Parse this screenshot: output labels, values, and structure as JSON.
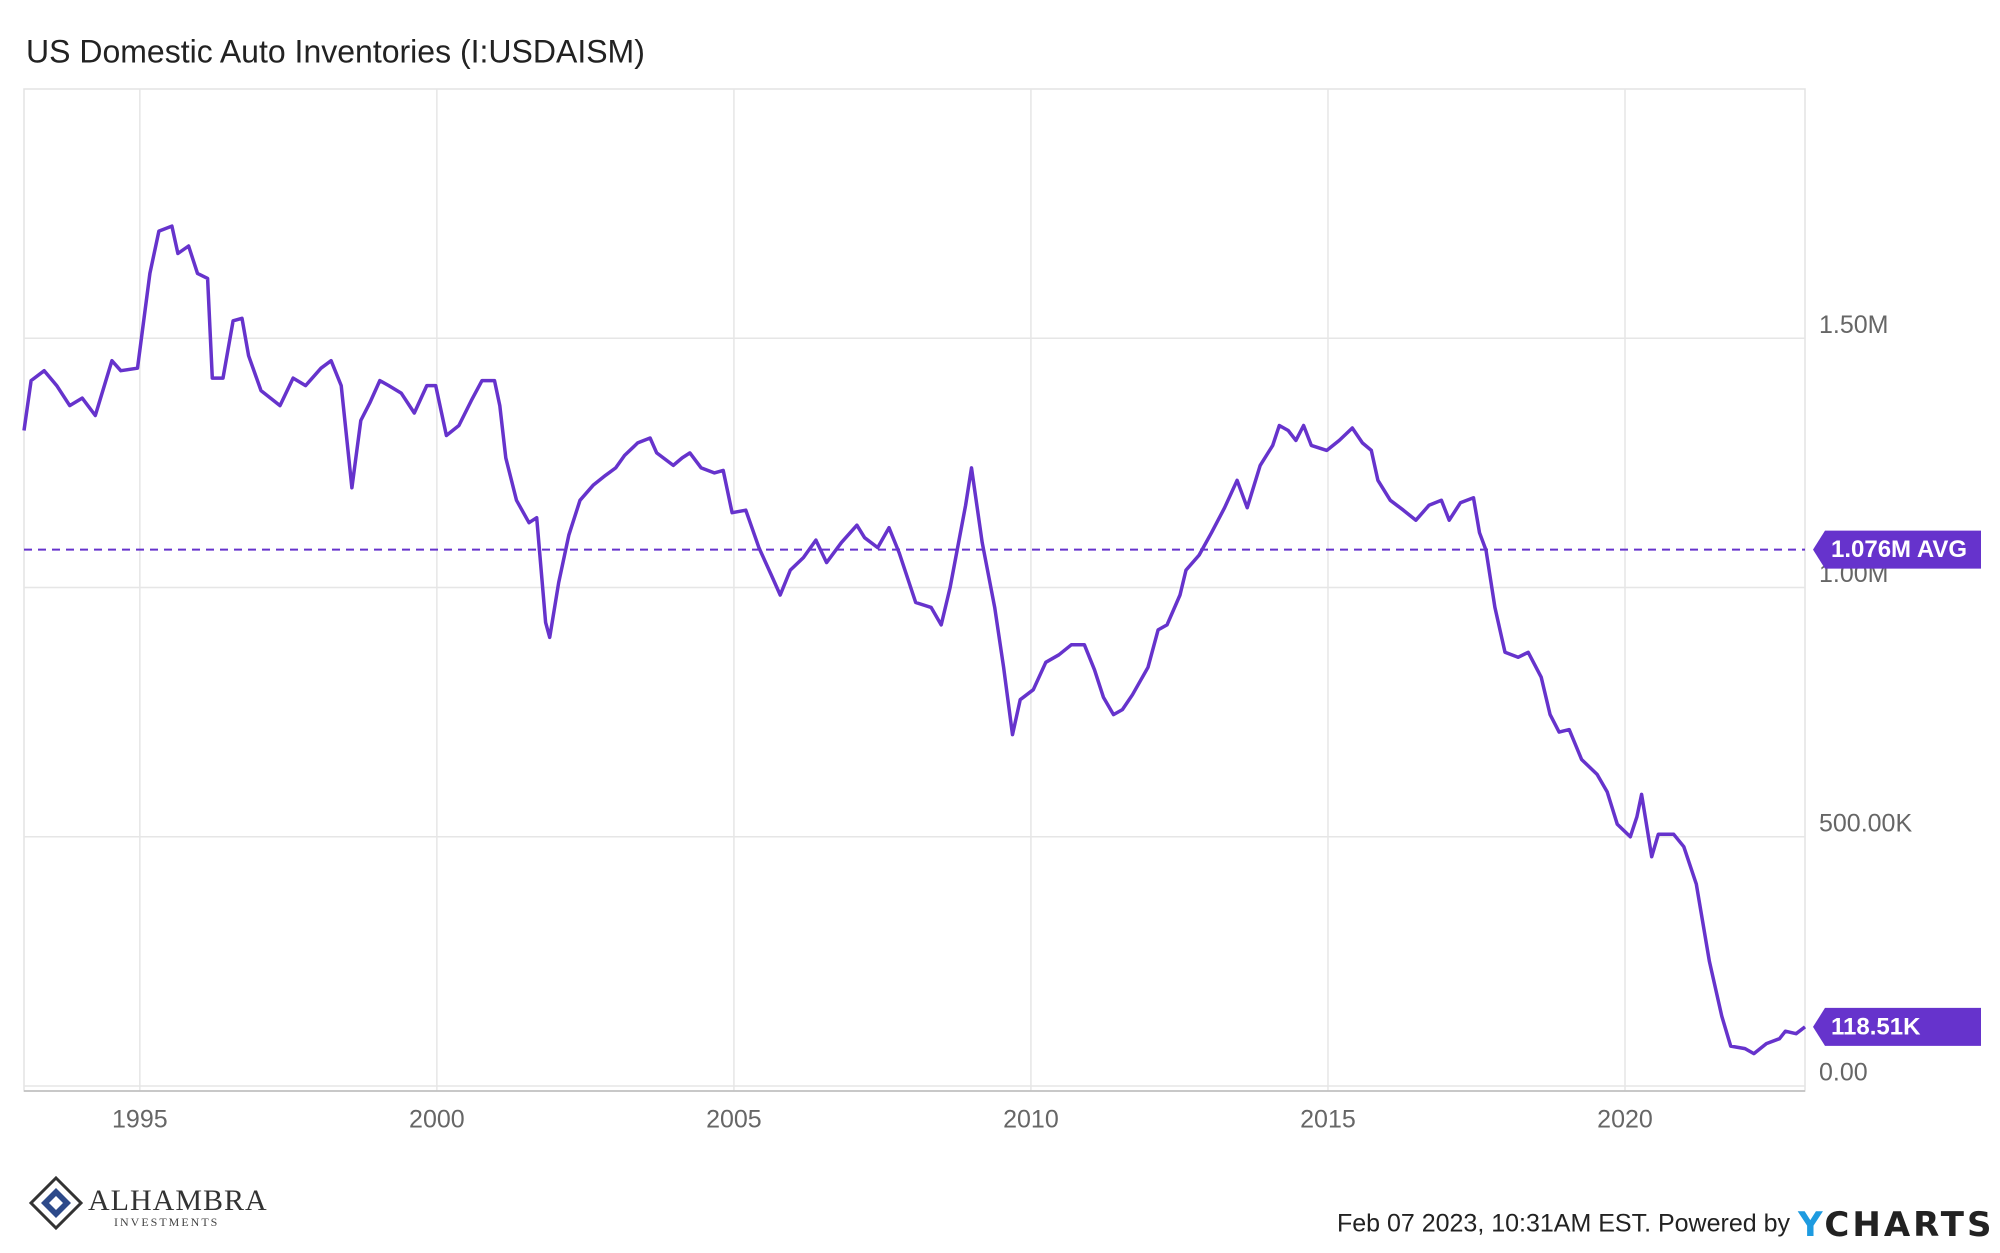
{
  "chart_data": {
    "type": "line",
    "title": "US Domestic Auto Inventories (I:USDAISM)",
    "color": "#6633cc",
    "grid": true,
    "xlim": [
      1993.05,
      2023.03
    ],
    "xticks": [
      1995,
      2000,
      2005,
      2010,
      2015,
      2020
    ],
    "ylim": [
      -10000,
      2000000
    ],
    "yticks": [
      {
        "value": 0,
        "label": "0.00"
      },
      {
        "value": 500000,
        "label": "500.00K"
      },
      {
        "value": 1000000,
        "label": "1.00M"
      },
      {
        "value": 1500000,
        "label": "1.50M"
      }
    ],
    "average": {
      "value": 1076000,
      "label": "1.076M AVG"
    },
    "last_value_label": "118.51K",
    "x": [
      1993.05,
      1993.17,
      1993.39,
      1993.6,
      1993.82,
      1994.03,
      1994.25,
      1994.53,
      1994.68,
      1994.96,
      1995.17,
      1995.32,
      1995.54,
      1995.64,
      1995.82,
      1995.97,
      1996.14,
      1996.22,
      1996.4,
      1996.57,
      1996.72,
      1996.83,
      1997.04,
      1997.36,
      1997.58,
      1997.79,
      1998.05,
      1998.22,
      1998.39,
      1998.57,
      1998.72,
      1998.87,
      1999.04,
      1999.19,
      1999.4,
      1999.62,
      1999.83,
      1999.98,
      2000.16,
      2000.37,
      2000.58,
      2000.76,
      2000.97,
      2001.06,
      2001.16,
      2001.34,
      2001.55,
      2001.68,
      2001.83,
      2001.9,
      2002.05,
      2002.22,
      2002.41,
      2002.63,
      2002.84,
      2003.01,
      2003.16,
      2003.38,
      2003.59,
      2003.7,
      2003.98,
      2004.13,
      2004.26,
      2004.45,
      2004.67,
      2004.82,
      2004.97,
      2005.2,
      2005.42,
      2005.63,
      2005.78,
      2005.95,
      2006.17,
      2006.38,
      2006.56,
      2006.81,
      2007.07,
      2007.2,
      2007.42,
      2007.61,
      2007.78,
      2008.06,
      2008.32,
      2008.49,
      2008.64,
      2008.9,
      2009.0,
      2009.18,
      2009.39,
      2009.54,
      2009.69,
      2009.82,
      2010.04,
      2010.25,
      2010.47,
      2010.68,
      2010.9,
      2011.07,
      2011.22,
      2011.39,
      2011.54,
      2011.71,
      2011.97,
      2012.14,
      2012.29,
      2012.51,
      2012.61,
      2012.83,
      2013.04,
      2013.26,
      2013.47,
      2013.64,
      2013.86,
      2014.07,
      2014.18,
      2014.33,
      2014.46,
      2014.59,
      2014.72,
      2014.98,
      2015.19,
      2015.41,
      2015.58,
      2015.73,
      2015.84,
      2016.05,
      2016.27,
      2016.48,
      2016.7,
      2016.91,
      2017.04,
      2017.23,
      2017.45,
      2017.55,
      2017.66,
      2017.81,
      2017.98,
      2018.2,
      2018.37,
      2018.59,
      2018.74,
      2018.89,
      2019.06,
      2019.27,
      2019.53,
      2019.7,
      2019.87,
      2020.09,
      2020.2,
      2020.28,
      2020.45,
      2020.56,
      2020.82,
      2020.99,
      2021.2,
      2021.42,
      2021.63,
      2021.78,
      2022.02,
      2022.17,
      2022.38,
      2022.6,
      2022.7,
      2022.88,
      2023.03
    ],
    "values": [
      1315000,
      1415000,
      1435000,
      1405000,
      1365000,
      1380000,
      1345000,
      1455000,
      1435000,
      1440000,
      1630000,
      1715000,
      1725000,
      1670000,
      1685000,
      1630000,
      1620000,
      1420000,
      1420000,
      1535000,
      1540000,
      1465000,
      1395000,
      1365000,
      1420000,
      1405000,
      1440000,
      1455000,
      1405000,
      1200000,
      1335000,
      1370000,
      1415000,
      1405000,
      1390000,
      1350000,
      1405000,
      1405000,
      1305000,
      1325000,
      1375000,
      1415000,
      1415000,
      1365000,
      1260000,
      1175000,
      1130000,
      1140000,
      930000,
      900000,
      1010000,
      1105000,
      1175000,
      1205000,
      1225000,
      1240000,
      1265000,
      1290000,
      1300000,
      1270000,
      1245000,
      1260000,
      1270000,
      1240000,
      1230000,
      1235000,
      1150000,
      1155000,
      1080000,
      1025000,
      985000,
      1035000,
      1060000,
      1095000,
      1050000,
      1090000,
      1125000,
      1100000,
      1080000,
      1120000,
      1070000,
      970000,
      960000,
      925000,
      1000000,
      1165000,
      1240000,
      1090000,
      960000,
      840000,
      705000,
      775000,
      795000,
      850000,
      865000,
      885000,
      885000,
      835000,
      780000,
      745000,
      755000,
      785000,
      840000,
      915000,
      925000,
      985000,
      1035000,
      1065000,
      1110000,
      1160000,
      1215000,
      1160000,
      1245000,
      1285000,
      1325000,
      1315000,
      1295000,
      1325000,
      1285000,
      1275000,
      1295000,
      1320000,
      1290000,
      1275000,
      1215000,
      1175000,
      1155000,
      1135000,
      1165000,
      1175000,
      1135000,
      1170000,
      1180000,
      1110000,
      1075000,
      960000,
      870000,
      860000,
      870000,
      820000,
      745000,
      710000,
      715000,
      655000,
      625000,
      590000,
      525000,
      500000,
      540000,
      585000,
      460000,
      505000,
      505000,
      480000,
      405000,
      250000,
      140000,
      80000,
      75000,
      65000,
      85000,
      95000,
      110000,
      105000,
      118510
    ]
  },
  "footer": {
    "timestamp": "Feb 07 2023, 10:31AM EST. Powered by",
    "brand": "YCHARTS"
  },
  "branding": {
    "name": "ALHAMBRA",
    "tagline": "INVESTMENTS"
  }
}
